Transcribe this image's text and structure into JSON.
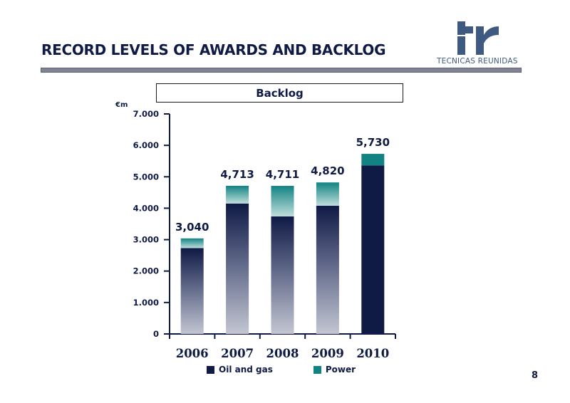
{
  "slide": {
    "title": "RECORD LEVELS OF AWARDS AND BACKLOG",
    "page_number": "8",
    "logo_text": "TECNICAS REUNIDAS",
    "accent": "#0f1a45",
    "logo_color": "#3e5a80"
  },
  "chart_data": {
    "type": "bar",
    "title": "Backlog",
    "ylabel": "€m",
    "ylim": [
      0,
      7000
    ],
    "yticks": [
      0,
      1000,
      2000,
      3000,
      4000,
      5000,
      6000,
      7000
    ],
    "ytick_labels": [
      "0",
      "1.000",
      "2.000",
      "3.000",
      "4.000",
      "5.000",
      "6.000",
      "7.000"
    ],
    "categories": [
      "2006",
      "2007",
      "2008",
      "2009",
      "2010"
    ],
    "stacked": true,
    "series": [
      {
        "name": "Oil and gas",
        "color": "#0f1a45",
        "values": [
          2730,
          4150,
          3740,
          4080,
          5360
        ]
      },
      {
        "name": "Power",
        "color": "#118382",
        "values": [
          310,
          563,
          971,
          740,
          370
        ]
      }
    ],
    "totals": [
      3040,
      4713,
      4711,
      4820,
      5730
    ],
    "total_labels": [
      "3,040",
      "4,713",
      "4,711",
      "4,820",
      "5,730"
    ],
    "legend_position": "bottom",
    "grid": false
  }
}
